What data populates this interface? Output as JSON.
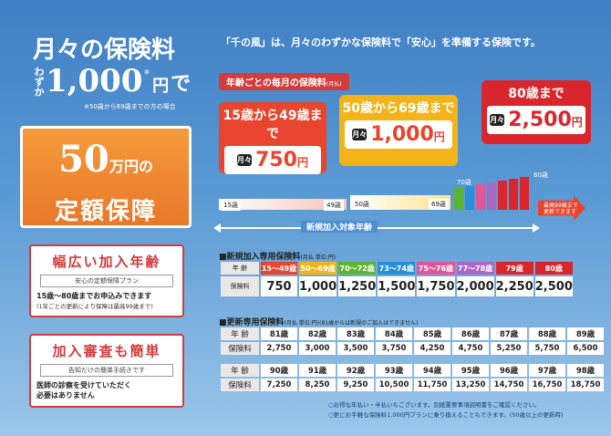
{
  "left": {
    "headline": "月々の保険料",
    "amount_prefix": "わずか",
    "amount": "1,000",
    "amount_tax": "※",
    "amount_unit": "円",
    "amount_suffix": "で",
    "note": "※50歳から69歳までの方の場合",
    "coverage_amount": "50",
    "coverage_unit": "万円の",
    "coverage_label": "定額保障",
    "feature1": {
      "title": "幅広い加入年齢",
      "subtitle": "安心の定額保障プラン",
      "desc": "15歳～80歳までお申込みできます",
      "desc_note": "(1年ごとの更新により保障は最高99歳まで)"
    },
    "feature2": {
      "title": "加入審査も簡単",
      "subtitle": "告知だけの簡単手続きです",
      "desc1": "医師の診察を受けていただく",
      "desc2": "必要はありません"
    }
  },
  "right": {
    "tagline": "「千の風」は、月々のわずかな保険料で「安心」を準備する保険です。",
    "section_label": "年齢ごとの毎月の保険料",
    "section_label_note": "(月払)",
    "bubbles": [
      {
        "age_range": "15歳から49歳まで",
        "tsuki": "月々",
        "price": "750",
        "unit": "円",
        "color": "#e8452e"
      },
      {
        "age_range": "50歳から69歳まで",
        "tsuki": "月々",
        "price": "1,000",
        "unit": "円",
        "color": "#f2b418"
      },
      {
        "age_range": "80歳まで",
        "tsuki": "月々",
        "price": "2,500",
        "unit": "円",
        "color": "#d9262c"
      }
    ],
    "range_labels": {
      "r1_start": "15歳",
      "r1_end": "49歳",
      "r2_start": "50歳",
      "r2_end": "69歳",
      "r3": "70歳",
      "r4": "80歳"
    },
    "entry_age_label": "新規加入対象年齢",
    "renew_note": "最高99歳まで更新できます",
    "new_table": {
      "title": "新規加入専用保険料",
      "title_note": "(月払 単位:円)",
      "age_header": "年 齢",
      "price_header": "保険料",
      "ages": [
        "15～49歳",
        "50～69歳",
        "70～72歳",
        "73～74歳",
        "75～76歳",
        "77～78歳",
        "79歳",
        "80歳"
      ],
      "colors": [
        "#e8452e",
        "#f2b418",
        "#5cb531",
        "#2a8fd6",
        "#e0569b",
        "#a868c4",
        "#d9262c",
        "#d9262c"
      ],
      "prices": [
        "750",
        "1,000",
        "1,250",
        "1,500",
        "1,750",
        "2,000",
        "2,250",
        "2,500"
      ]
    },
    "renew_table": {
      "title": "更新専用保険料",
      "title_note": "(月払 単位:円)(81歳からは新規のご加入はできません)",
      "age_header": "年 齢",
      "price_header": "保険料",
      "rows": [
        {
          "ages": [
            "81歳",
            "82歳",
            "83歳",
            "84歳",
            "85歳",
            "86歳",
            "87歳",
            "88歳",
            "89歳"
          ],
          "prices": [
            "2,750",
            "3,000",
            "3,500",
            "3,750",
            "4,250",
            "4,750",
            "5,250",
            "5,750",
            "6,500"
          ]
        },
        {
          "ages": [
            "90歳",
            "91歳",
            "92歳",
            "93歳",
            "94歳",
            "95歳",
            "96歳",
            "97歳",
            "98歳"
          ],
          "prices": [
            "7,250",
            "8,250",
            "9,250",
            "10,500",
            "11,750",
            "13,250",
            "14,750",
            "16,750",
            "18,750"
          ]
        }
      ]
    },
    "footnote1": "○お得な年払い・半払いもございます。別紙重要事項説明書をご確認ください。",
    "footnote2": "○更にお手軽な保険料1,000円プランに乗り換えることもできます。(50歳以上の更新時)"
  }
}
